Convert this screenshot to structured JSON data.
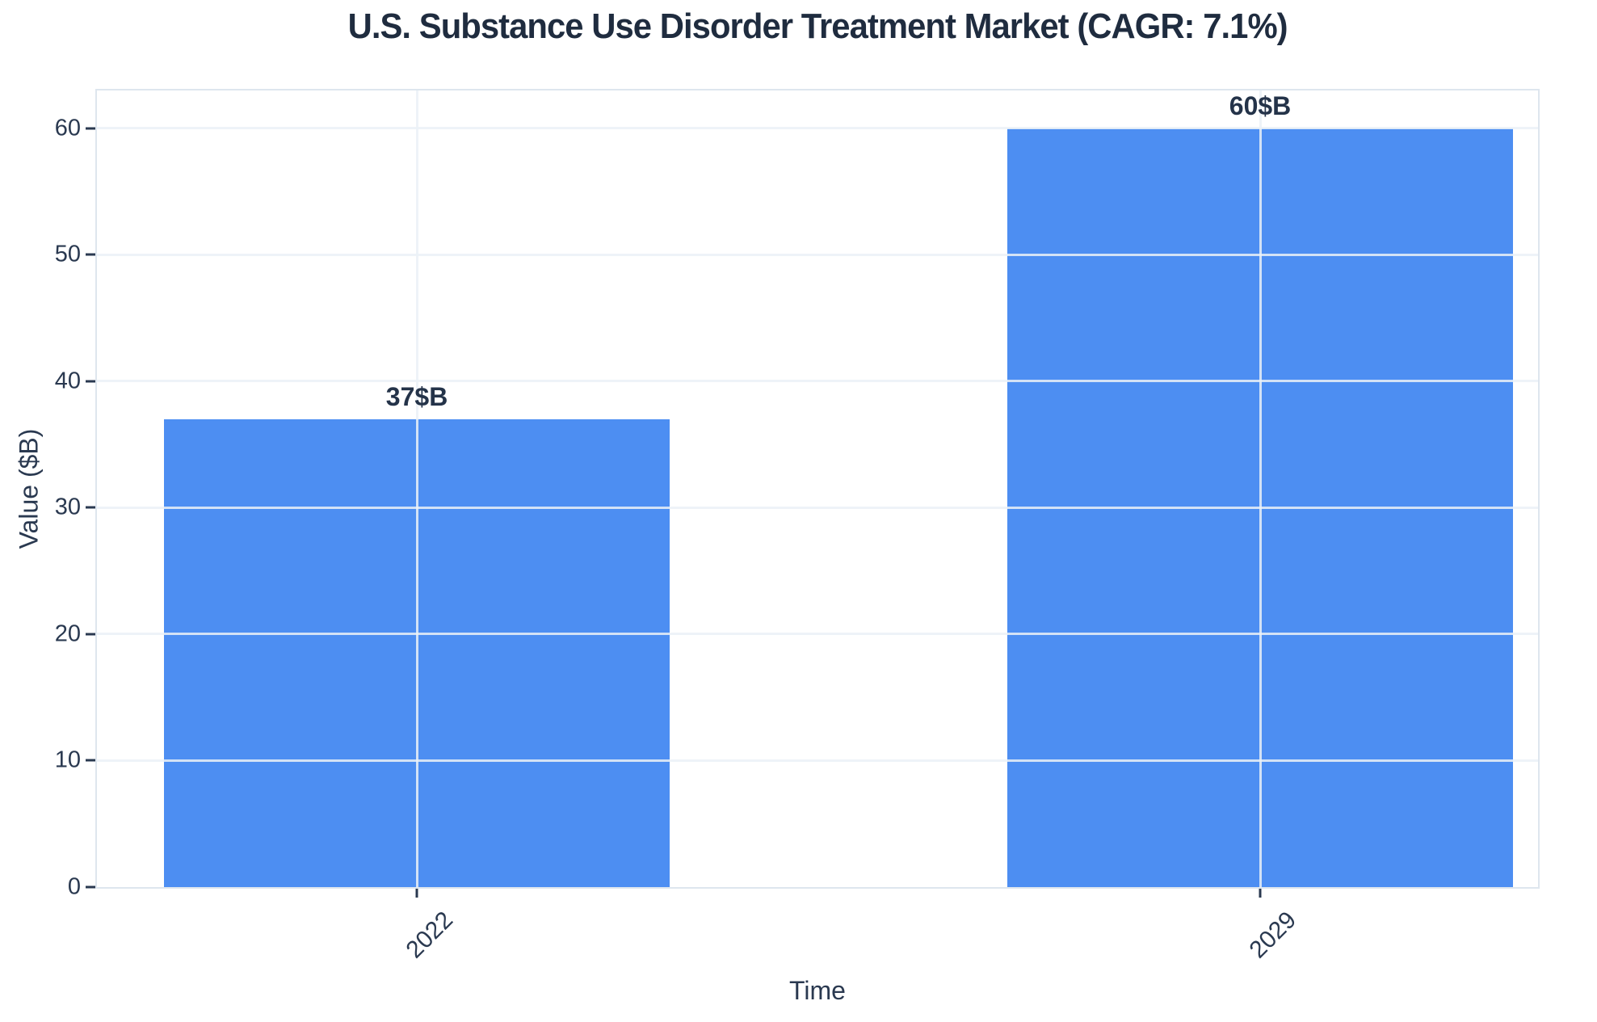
{
  "chart_data": {
    "type": "bar",
    "title": "U.S. Substance Use Disorder Treatment Market (CAGR: 7.1%)",
    "categories": [
      "2022",
      "2029"
    ],
    "values": [
      37,
      60
    ],
    "bar_labels": [
      "37$B",
      "60$B"
    ],
    "xlabel": "Time",
    "ylabel": "Value ($B)",
    "ylim": [
      0,
      63
    ],
    "yticks": [
      0,
      10,
      20,
      30,
      40,
      50,
      60
    ],
    "grid": true,
    "legend": "none",
    "bar_color": "#4d8ef2",
    "text_color": "#243349",
    "grid_color": "rgba(235,241,247,0.85)",
    "spine_color": "#dee6ee"
  }
}
